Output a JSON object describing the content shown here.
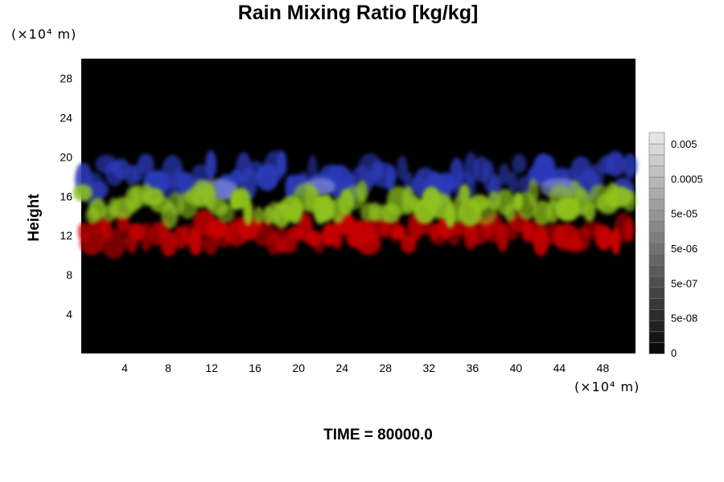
{
  "chart_data": {
    "type": "heatmap",
    "title": "Rain Mixing Ratio [kg/kg]",
    "ylabel": "Height",
    "xunit_label": "(×10⁴ m)",
    "yunit_label": "(×10⁴ m)",
    "xlim": [
      0,
      51
    ],
    "ylim": [
      0,
      30
    ],
    "xticks": [
      "4",
      "8",
      "12",
      "16",
      "20",
      "24",
      "28",
      "32",
      "36",
      "40",
      "44",
      "48"
    ],
    "yticks": [
      "4",
      "8",
      "12",
      "16",
      "20",
      "24",
      "28"
    ],
    "layers": [
      {
        "name": "red",
        "color": "#c80000",
        "y_range": [
          10.5,
          14
        ]
      },
      {
        "name": "yellow-green",
        "color": "#8fc21e",
        "y_range": [
          13.5,
          17
        ]
      },
      {
        "name": "blue",
        "color": "#2c3ab8",
        "y_range": [
          16,
          20
        ]
      }
    ],
    "colorbar": {
      "labels": [
        "0.005",
        "0.0005",
        "5e-05",
        "5e-06",
        "5e-07",
        "5e-08",
        "0"
      ]
    },
    "background_color": "#000000"
  },
  "footer": {
    "time_text": "TIME = 80000.0"
  }
}
